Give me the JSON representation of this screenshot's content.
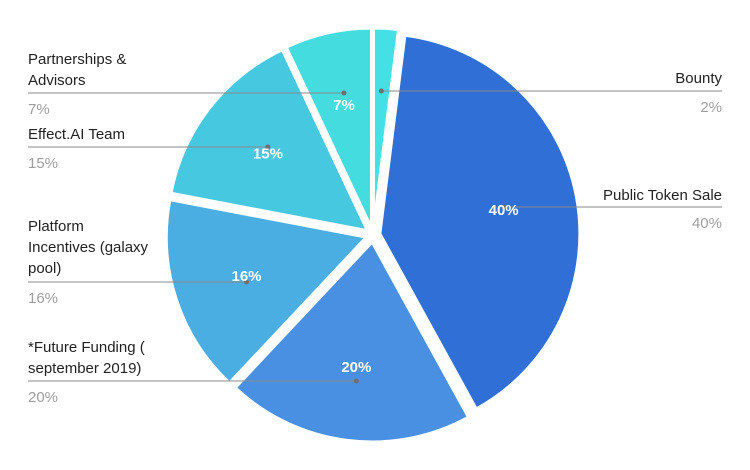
{
  "chart_data": {
    "type": "pie",
    "title": "",
    "slices": [
      {
        "name": "Bounty",
        "label_lines": [
          "Bounty"
        ],
        "value": 2,
        "pct_label": "2%",
        "color": "#45e0e6"
      },
      {
        "name": "Public Token Sale",
        "label_lines": [
          "Public Token Sale"
        ],
        "value": 40,
        "pct_label": "40%",
        "color": "#2f6fd6"
      },
      {
        "name": "*Future Funding ( september 2019)",
        "label_lines": [
          "*Future Funding (",
          "september 2019)"
        ],
        "value": 20,
        "pct_label": "20%",
        "color": "#4a90e2"
      },
      {
        "name": "Platform Incentives (galaxy pool)",
        "label_lines": [
          "Platform",
          "Incentives (galaxy",
          "pool)"
        ],
        "value": 16,
        "pct_label": "16%",
        "color": "#4aaee2"
      },
      {
        "name": "Effect.AI Team",
        "label_lines": [
          "Effect.AI Team"
        ],
        "value": 15,
        "pct_label": "15%",
        "color": "#45c8e0"
      },
      {
        "name": "Partnerships & Advisors",
        "label_lines": [
          "Partnerships &",
          "Advisors"
        ],
        "value": 7,
        "pct_label": "7%",
        "color": "#45dce0"
      }
    ]
  }
}
